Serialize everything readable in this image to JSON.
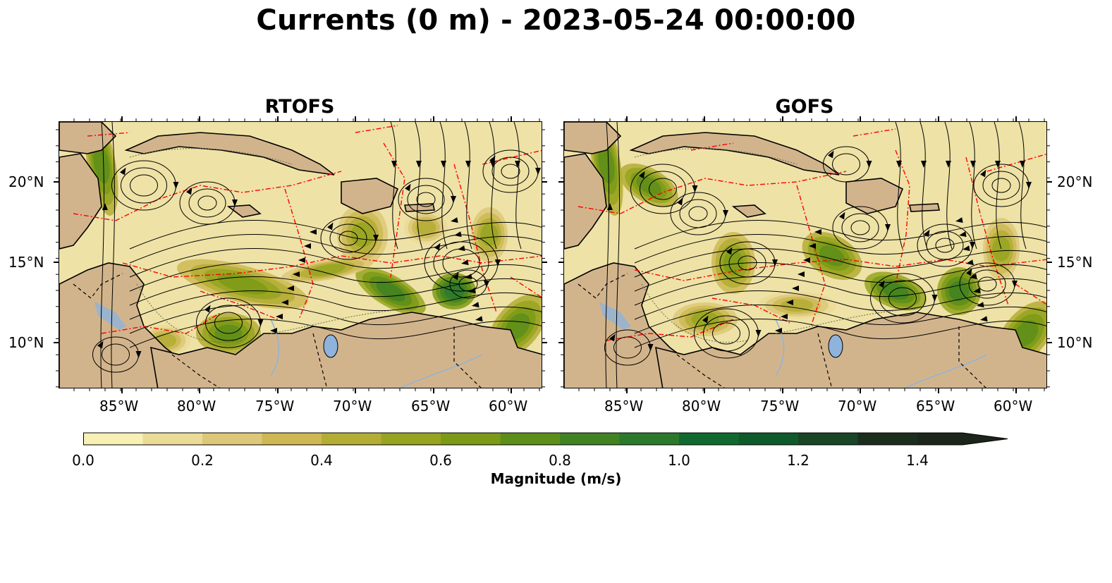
{
  "figure": {
    "title": "Currents (0 m) - 2023-05-24 00:00:00"
  },
  "panels": [
    {
      "title": "RTOFS"
    },
    {
      "title": "GOFS"
    }
  ],
  "axes": {
    "lon_ticks": [
      "85°W",
      "80°W",
      "75°W",
      "70°W",
      "65°W",
      "60°W"
    ],
    "lat_ticks": [
      "20°N",
      "15°N",
      "10°N"
    ]
  },
  "colorbar": {
    "label": "Magnitude (m/s)",
    "ticks": [
      "0.0",
      "0.2",
      "0.4",
      "0.6",
      "0.8",
      "1.0",
      "1.2",
      "1.4"
    ],
    "colors": [
      "#f8f0b4",
      "#eadb96",
      "#dcc878",
      "#cdb853",
      "#b3ad35",
      "#97a421",
      "#7d9a16",
      "#5e8e1a",
      "#418322",
      "#2b7a2c",
      "#106a30",
      "#0f5a2a",
      "#1a4526",
      "#1b2e1e",
      "#1c2519"
    ],
    "extend": "max"
  },
  "map_colors": {
    "land": "#d2b48c",
    "ocean_low": "#eee2a6",
    "lake": "#8fb3dc",
    "eez_lines": "#ff0000",
    "streamlines": "#000000"
  }
}
